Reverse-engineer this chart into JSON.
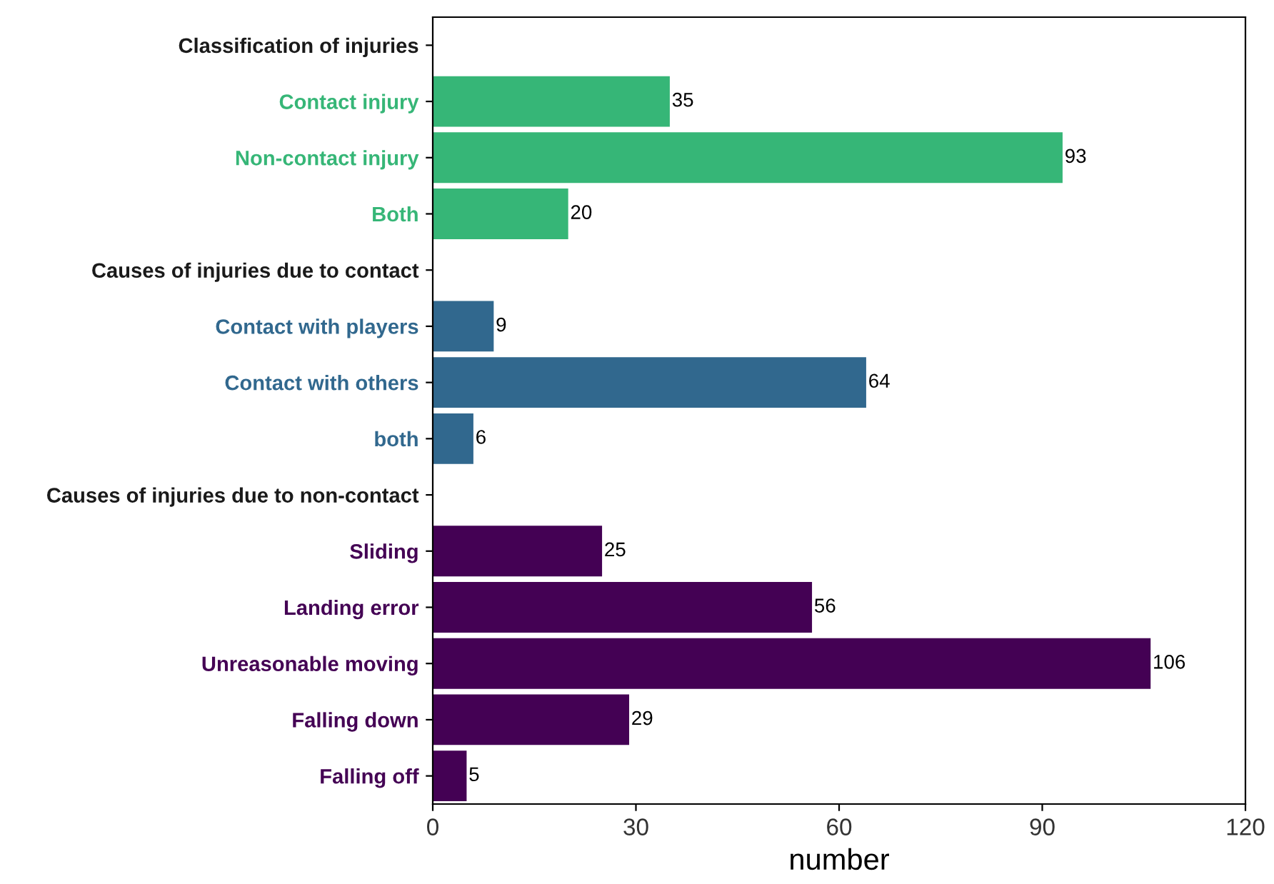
{
  "chart_data": {
    "type": "bar",
    "orientation": "horizontal",
    "xlabel": "number",
    "categories": [
      "Classification of injuries",
      "Contact injury",
      "Non-contact injury",
      "Both",
      "Causes of injuries due to contact",
      "Contact with players",
      "Contact with others",
      "both",
      "Causes of injuries due to non-contact",
      "Sliding",
      "Landing error",
      "Unreasonable moving",
      "Falling down",
      "Falling off"
    ],
    "values": [
      null,
      35,
      93,
      20,
      null,
      9,
      64,
      6,
      null,
      25,
      56,
      106,
      29,
      5
    ],
    "colors": [
      null,
      "#36b677",
      "#36b677",
      "#36b677",
      null,
      "#31688e",
      "#31688e",
      "#31688e",
      null,
      "#440154",
      "#440154",
      "#440154",
      "#440154",
      "#440154"
    ],
    "xlim": [
      0,
      120
    ],
    "xticks": [
      0,
      30,
      60,
      90,
      120
    ],
    "grid": false,
    "data_labels": true
  }
}
